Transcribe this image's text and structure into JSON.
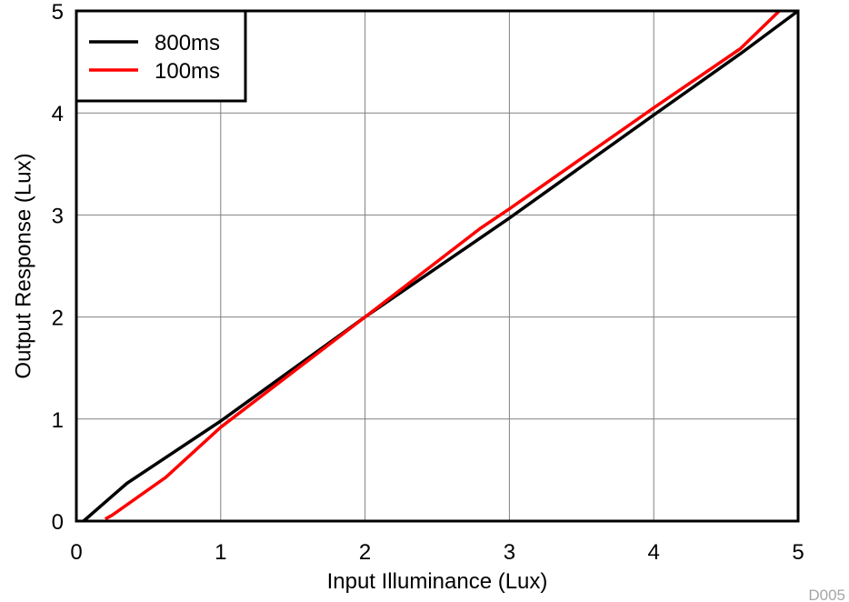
{
  "chart_data": {
    "type": "line",
    "xlabel": "Input Illuminance (Lux)",
    "ylabel": "Output Response (Lux)",
    "xlim": [
      0,
      5
    ],
    "ylim": [
      0,
      5
    ],
    "x_ticks": [
      "0",
      "1",
      "2",
      "3",
      "4",
      "5"
    ],
    "y_ticks": [
      "0",
      "1",
      "2",
      "3",
      "4",
      "5"
    ],
    "grid": true,
    "legend_position": "top-left",
    "series": [
      {
        "name": "800ms",
        "color": "#000000",
        "points": [
          [
            0.05,
            0
          ],
          [
            0.35,
            0.37
          ],
          [
            1.0,
            0.98
          ],
          [
            2.0,
            2.0
          ],
          [
            3.0,
            2.97
          ],
          [
            4.0,
            3.98
          ],
          [
            4.6,
            4.58
          ],
          [
            5.0,
            5.0
          ]
        ]
      },
      {
        "name": "100ms",
        "color": "#ff0000",
        "points": [
          [
            0.2,
            0.02
          ],
          [
            0.25,
            0.06
          ],
          [
            0.62,
            0.43
          ],
          [
            1.0,
            0.92
          ],
          [
            2.0,
            2.0
          ],
          [
            2.8,
            2.87
          ],
          [
            3.0,
            3.06
          ],
          [
            4.0,
            4.05
          ],
          [
            4.6,
            4.63
          ],
          [
            4.87,
            5.0
          ]
        ]
      }
    ],
    "annotation": "D005"
  }
}
